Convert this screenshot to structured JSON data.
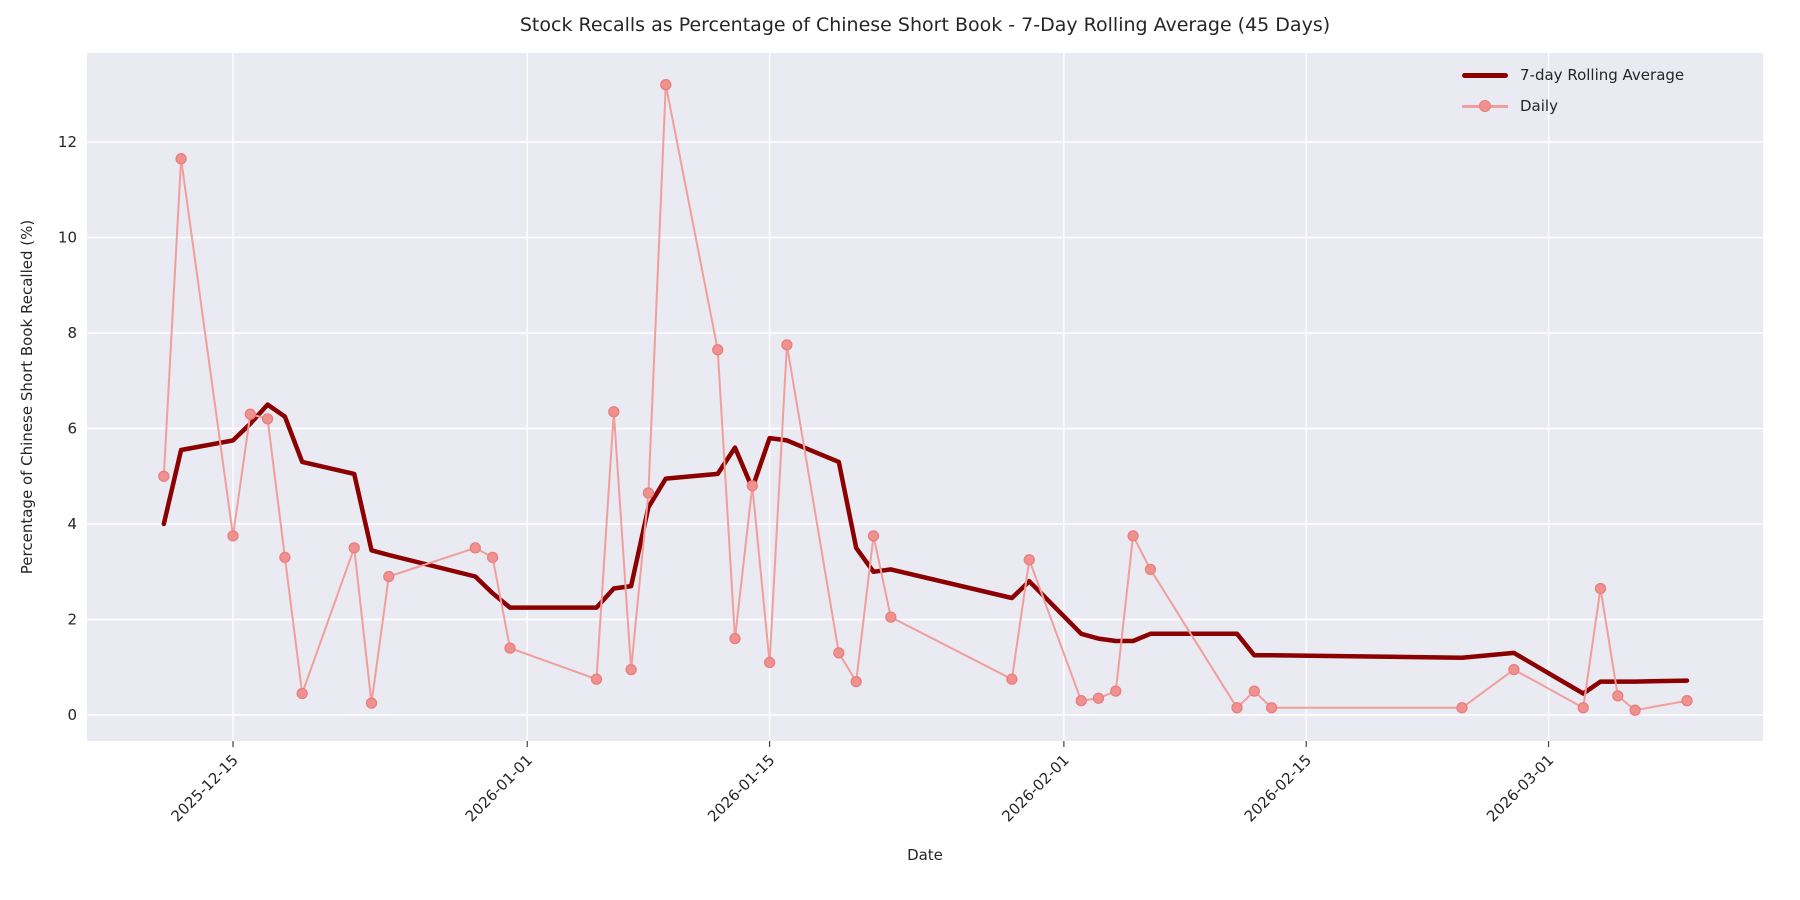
{
  "chart_data": {
    "type": "line",
    "title": "Stock Recalls as Percentage of Chinese Short Book - 7-Day Rolling Average (45 Days)",
    "xlabel": "Date",
    "ylabel": "Percentage of Chinese Short Book Recalled (%)",
    "yticks": [
      0,
      2,
      4,
      6,
      8,
      10,
      12
    ],
    "xticks": [
      "2025-12-15",
      "2026-01-01",
      "2026-01-15",
      "2026-02-01",
      "2026-02-15",
      "2026-03-01"
    ],
    "ylim": [
      -0.56,
      13.86
    ],
    "xlim": [
      "2025-12-06",
      "2026-03-13"
    ],
    "grid": "on",
    "legend_position": "upper right",
    "plot_background": "#eaeaf2",
    "gridline_color": "#ffffff",
    "series": [
      {
        "name": "7-day Rolling Average",
        "color": "#8b0000",
        "linewidth": 4.5,
        "markers": false,
        "points": [
          [
            "2025-12-11",
            4.0
          ],
          [
            "2025-12-12",
            5.55
          ],
          [
            "2025-12-15",
            5.75
          ],
          [
            "2025-12-16",
            6.1
          ],
          [
            "2025-12-17",
            6.5
          ],
          [
            "2025-12-18",
            6.25
          ],
          [
            "2025-12-19",
            5.3
          ],
          [
            "2025-12-22",
            5.05
          ],
          [
            "2025-12-23",
            3.45
          ],
          [
            "2025-12-24",
            3.35
          ],
          [
            "2025-12-29",
            2.9
          ],
          [
            "2025-12-30",
            2.55
          ],
          [
            "2025-12-31",
            2.25
          ],
          [
            "2026-01-05",
            2.25
          ],
          [
            "2026-01-06",
            2.65
          ],
          [
            "2026-01-07",
            2.7
          ],
          [
            "2026-01-08",
            4.35
          ],
          [
            "2026-01-09",
            4.95
          ],
          [
            "2026-01-12",
            5.05
          ],
          [
            "2026-01-13",
            5.6
          ],
          [
            "2026-01-14",
            4.75
          ],
          [
            "2026-01-15",
            5.8
          ],
          [
            "2026-01-16",
            5.75
          ],
          [
            "2026-01-19",
            5.3
          ],
          [
            "2026-01-20",
            3.5
          ],
          [
            "2026-01-21",
            3.0
          ],
          [
            "2026-01-22",
            3.05
          ],
          [
            "2026-01-29",
            2.45
          ],
          [
            "2026-01-30",
            2.8
          ],
          [
            "2026-02-02",
            1.7
          ],
          [
            "2026-02-03",
            1.6
          ],
          [
            "2026-02-04",
            1.55
          ],
          [
            "2026-02-05",
            1.55
          ],
          [
            "2026-02-06",
            1.7
          ],
          [
            "2026-02-11",
            1.7
          ],
          [
            "2026-02-12",
            1.25
          ],
          [
            "2026-02-13",
            1.25
          ],
          [
            "2026-02-24",
            1.2
          ],
          [
            "2026-02-27",
            1.3
          ],
          [
            "2026-03-03",
            0.45
          ],
          [
            "2026-03-04",
            0.7
          ],
          [
            "2026-03-05",
            0.7
          ],
          [
            "2026-03-06",
            0.7
          ],
          [
            "2026-03-09",
            0.72
          ]
        ]
      },
      {
        "name": "Daily",
        "color": "#f19e9d",
        "marker_fill": "#ef918f",
        "marker_edge": "#e97f7d",
        "linewidth": 2,
        "markers": true,
        "points": [
          [
            "2025-12-11",
            5.0
          ],
          [
            "2025-12-12",
            11.65
          ],
          [
            "2025-12-15",
            3.75
          ],
          [
            "2025-12-16",
            6.3
          ],
          [
            "2025-12-17",
            6.2
          ],
          [
            "2025-12-18",
            3.3
          ],
          [
            "2025-12-19",
            0.45
          ],
          [
            "2025-12-22",
            3.5
          ],
          [
            "2025-12-23",
            0.25
          ],
          [
            "2025-12-24",
            2.9
          ],
          [
            "2025-12-29",
            3.5
          ],
          [
            "2025-12-30",
            3.3
          ],
          [
            "2025-12-31",
            1.4
          ],
          [
            "2026-01-05",
            0.75
          ],
          [
            "2026-01-06",
            6.35
          ],
          [
            "2026-01-07",
            0.95
          ],
          [
            "2026-01-08",
            4.65
          ],
          [
            "2026-01-09",
            13.2
          ],
          [
            "2026-01-12",
            7.65
          ],
          [
            "2026-01-13",
            1.6
          ],
          [
            "2026-01-14",
            4.8
          ],
          [
            "2026-01-15",
            1.1
          ],
          [
            "2026-01-16",
            7.75
          ],
          [
            "2026-01-19",
            1.3
          ],
          [
            "2026-01-20",
            0.7
          ],
          [
            "2026-01-21",
            3.75
          ],
          [
            "2026-01-22",
            2.05
          ],
          [
            "2026-01-29",
            0.75
          ],
          [
            "2026-01-30",
            3.25
          ],
          [
            "2026-02-02",
            0.3
          ],
          [
            "2026-02-03",
            0.35
          ],
          [
            "2026-02-04",
            0.5
          ],
          [
            "2026-02-05",
            3.75
          ],
          [
            "2026-02-06",
            3.05
          ],
          [
            "2026-02-11",
            0.15
          ],
          [
            "2026-02-12",
            0.5
          ],
          [
            "2026-02-13",
            0.15
          ],
          [
            "2026-02-24",
            0.15
          ],
          [
            "2026-02-27",
            0.95
          ],
          [
            "2026-03-03",
            0.15
          ],
          [
            "2026-03-04",
            2.65
          ],
          [
            "2026-03-05",
            0.4
          ],
          [
            "2026-03-06",
            0.1
          ],
          [
            "2026-03-09",
            0.3
          ]
        ]
      }
    ]
  },
  "legend": {
    "rolling_label": "7-day Rolling Average",
    "daily_label": "Daily"
  }
}
